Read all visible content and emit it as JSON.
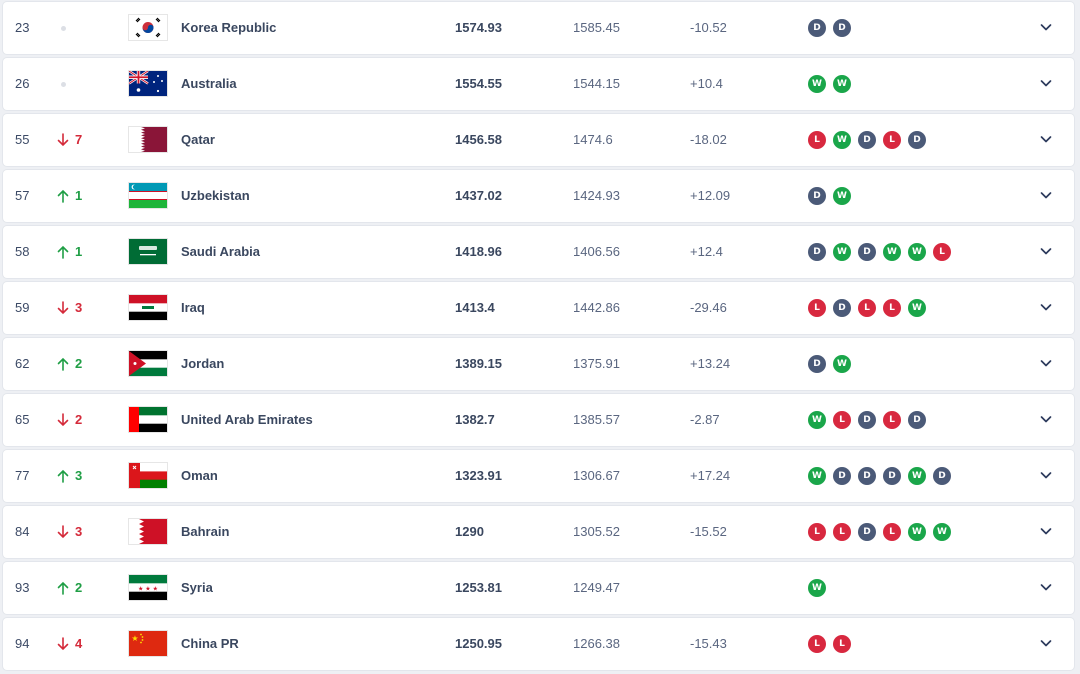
{
  "colors": {
    "up": "#1f9e45",
    "down": "#d42a3a",
    "win": "#1aa64a",
    "draw": "#4b5a78",
    "loss": "#d8283f"
  },
  "rows": [
    {
      "rank": "23",
      "dir": "none",
      "change": "",
      "flag": "korea",
      "name": "Korea Republic",
      "points": "1574.93",
      "previous": "1585.45",
      "diff": "-10.52",
      "form": [
        "D",
        "D"
      ]
    },
    {
      "rank": "26",
      "dir": "none",
      "change": "",
      "flag": "australia",
      "name": "Australia",
      "points": "1554.55",
      "previous": "1544.15",
      "diff": "+10.4",
      "form": [
        "W",
        "W"
      ]
    },
    {
      "rank": "55",
      "dir": "down",
      "change": "7",
      "flag": "qatar",
      "name": "Qatar",
      "points": "1456.58",
      "previous": "1474.6",
      "diff": "-18.02",
      "form": [
        "L",
        "W",
        "D",
        "L",
        "D"
      ]
    },
    {
      "rank": "57",
      "dir": "up",
      "change": "1",
      "flag": "uzbekistan",
      "name": "Uzbekistan",
      "points": "1437.02",
      "previous": "1424.93",
      "diff": "+12.09",
      "form": [
        "D",
        "W"
      ]
    },
    {
      "rank": "58",
      "dir": "up",
      "change": "1",
      "flag": "saudi",
      "name": "Saudi Arabia",
      "points": "1418.96",
      "previous": "1406.56",
      "diff": "+12.4",
      "form": [
        "D",
        "W",
        "D",
        "W",
        "W",
        "L"
      ]
    },
    {
      "rank": "59",
      "dir": "down",
      "change": "3",
      "flag": "iraq",
      "name": "Iraq",
      "points": "1413.4",
      "previous": "1442.86",
      "diff": "-29.46",
      "form": [
        "L",
        "D",
        "L",
        "L",
        "W"
      ]
    },
    {
      "rank": "62",
      "dir": "up",
      "change": "2",
      "flag": "jordan",
      "name": "Jordan",
      "points": "1389.15",
      "previous": "1375.91",
      "diff": "+13.24",
      "form": [
        "D",
        "W"
      ]
    },
    {
      "rank": "65",
      "dir": "down",
      "change": "2",
      "flag": "uae",
      "name": "United Arab Emirates",
      "points": "1382.7",
      "previous": "1385.57",
      "diff": "-2.87",
      "form": [
        "W",
        "L",
        "D",
        "L",
        "D"
      ]
    },
    {
      "rank": "77",
      "dir": "up",
      "change": "3",
      "flag": "oman",
      "name": "Oman",
      "points": "1323.91",
      "previous": "1306.67",
      "diff": "+17.24",
      "form": [
        "W",
        "D",
        "D",
        "D",
        "W",
        "D"
      ]
    },
    {
      "rank": "84",
      "dir": "down",
      "change": "3",
      "flag": "bahrain",
      "name": "Bahrain",
      "points": "1290",
      "previous": "1305.52",
      "diff": "-15.52",
      "form": [
        "L",
        "L",
        "D",
        "L",
        "W",
        "W"
      ]
    },
    {
      "rank": "93",
      "dir": "up",
      "change": "2",
      "flag": "syria",
      "name": "Syria",
      "points": "1253.81",
      "previous": "1249.47",
      "diff": "",
      "form": [
        "W"
      ]
    },
    {
      "rank": "94",
      "dir": "down",
      "change": "4",
      "flag": "china",
      "name": "China PR",
      "points": "1250.95",
      "previous": "1266.38",
      "diff": "-15.43",
      "form": [
        "L",
        "L"
      ]
    }
  ]
}
